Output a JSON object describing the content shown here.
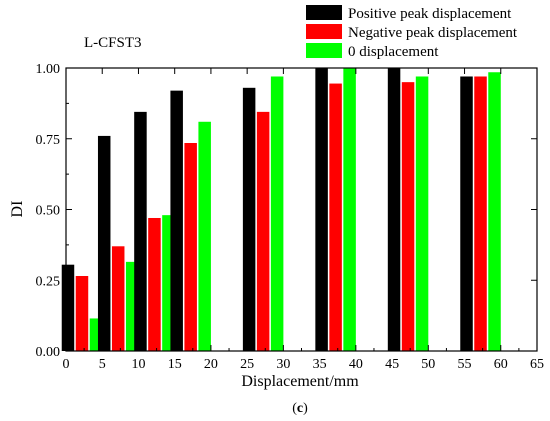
{
  "chart_data": {
    "type": "bar",
    "annotation": "L-CFST3",
    "xlabel": "Displacement/mm",
    "ylabel": "DI",
    "caption_open": "(",
    "caption_letter": "c",
    "caption_close": ")",
    "xlim": [
      0,
      65
    ],
    "ylim": [
      0,
      1.0
    ],
    "x_ticks": [
      0,
      5,
      10,
      15,
      20,
      25,
      30,
      35,
      40,
      45,
      50,
      55,
      60,
      65
    ],
    "y_ticks": [
      0.0,
      0.25,
      0.5,
      0.75,
      1.0
    ],
    "y_tick_labels": [
      "0.00",
      "0.25",
      "0.50",
      "0.75",
      "1.00"
    ],
    "x": [
      5,
      10,
      15,
      20,
      30,
      40,
      50,
      60
    ],
    "series": [
      {
        "name": "Positive peak displacement",
        "color": "#000000",
        "values": [
          0.305,
          0.76,
          0.845,
          0.92,
          0.93,
          1.0,
          1.0,
          0.97
        ]
      },
      {
        "name": "Negative peak displacement",
        "color": "#ff0000",
        "values": [
          0.265,
          0.37,
          0.47,
          0.735,
          0.845,
          0.945,
          0.95,
          0.97
        ]
      },
      {
        "name": "0 displacement",
        "color": "#00ff00",
        "values": [
          0.115,
          0.315,
          0.48,
          0.81,
          0.97,
          1.0,
          0.97,
          0.985
        ]
      }
    ],
    "legend_position": "top-right",
    "grid": false
  }
}
